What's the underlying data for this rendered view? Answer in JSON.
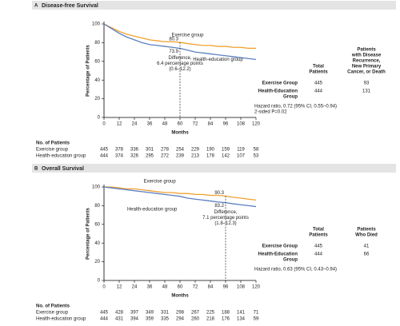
{
  "chart_data": [
    {
      "type": "line",
      "panel": "A",
      "title": "Disease-free Survival",
      "xlabel": "Months",
      "ylabel": "Percentage of Patients",
      "x": [
        0,
        6,
        12,
        18,
        24,
        30,
        36,
        42,
        48,
        54,
        60,
        66,
        72,
        78,
        84,
        90,
        96,
        102,
        108,
        114,
        120
      ],
      "xlim": [
        0,
        120
      ],
      "xticks": [
        0,
        12,
        24,
        36,
        48,
        60,
        72,
        84,
        96,
        108,
        120
      ],
      "ylim": [
        0,
        100
      ],
      "yticks": [
        0,
        20,
        40,
        60,
        80,
        100
      ],
      "grid": false,
      "series": [
        {
          "name": "Exercise group",
          "color": "#f0a030",
          "values": [
            100,
            96,
            92,
            89,
            87,
            85,
            83,
            82,
            81,
            81,
            80.3,
            79,
            78,
            77,
            77,
            76,
            76,
            75,
            75,
            74,
            74
          ]
        },
        {
          "name": "Health-education group",
          "color": "#5b7fc0",
          "values": [
            100,
            95,
            90,
            86,
            83,
            80,
            78,
            77,
            76,
            75,
            73.9,
            72,
            70,
            69,
            68,
            67,
            66,
            65,
            64,
            63,
            62
          ]
        }
      ],
      "marked_x": 60,
      "marked_values": [
        80.3,
        73.9
      ],
      "difference": [
        "Difference,",
        "6.4 percentage points",
        "(0.6–12.2)"
      ],
      "table": {
        "columns": [
          [
            "Total",
            "Patients"
          ],
          [
            "Patients",
            "with Disease",
            "Recurrence,",
            "New Primary",
            "Cancer, or Death"
          ]
        ],
        "rows": [
          {
            "label": [
              "Exercise Group"
            ],
            "values": [
              445,
              93
            ]
          },
          {
            "label": [
              "Health-Education",
              "Group"
            ],
            "values": [
              444,
              131
            ]
          }
        ],
        "footnotes": [
          "Hazard ratio, 0.72 (95% CI, 0.55–0.94)",
          "2-sided P=0.02"
        ]
      },
      "at_risk": {
        "title": "No. of Patients",
        "rows": [
          {
            "name": "Exercise group",
            "values": [
              445,
              378,
              336,
              301,
              278,
              254,
              229,
              190,
              159,
              119,
              58
            ]
          },
          {
            "name": "Health-education group",
            "values": [
              444,
              374,
              326,
              295,
              272,
              239,
              213,
              178,
              142,
              107,
              53
            ]
          }
        ]
      }
    },
    {
      "type": "line",
      "panel": "B",
      "title": "Overall Survival",
      "xlabel": "Months",
      "ylabel": "Percentage of Patients",
      "x": [
        0,
        6,
        12,
        18,
        24,
        30,
        36,
        42,
        48,
        54,
        60,
        66,
        72,
        78,
        84,
        90,
        96,
        102,
        108,
        114,
        120
      ],
      "xlim": [
        0,
        120
      ],
      "xticks": [
        0,
        12,
        24,
        36,
        48,
        60,
        72,
        84,
        96,
        108,
        120
      ],
      "ylim": [
        0,
        100
      ],
      "yticks": [
        0,
        20,
        40,
        60,
        80,
        100
      ],
      "grid": false,
      "series": [
        {
          "name": "Exercise group",
          "color": "#f0a030",
          "values": [
            100,
            100,
            99,
            98,
            98,
            97,
            96,
            95,
            94,
            94,
            93,
            93,
            92,
            92,
            91,
            91,
            90.3,
            89,
            88,
            87,
            86
          ]
        },
        {
          "name": "Health-education group",
          "color": "#5b7fc0",
          "values": [
            100,
            99,
            98,
            97,
            96,
            95,
            94,
            93,
            92,
            91,
            90,
            88,
            87,
            86,
            85,
            84,
            83.2,
            82,
            81,
            80,
            79
          ]
        }
      ],
      "marked_x": 96,
      "marked_values": [
        90.3,
        83.2
      ],
      "difference": [
        "Difference,",
        "7.1 percentage points",
        "(1.8–12.3)"
      ],
      "table": {
        "columns": [
          [
            "Total",
            "Patients"
          ],
          [
            "Patients",
            "Who Died"
          ]
        ],
        "rows": [
          {
            "label": [
              "Exercise Group"
            ],
            "values": [
              445,
              41
            ]
          },
          {
            "label": [
              "Health-Education",
              "Group"
            ],
            "values": [
              444,
              66
            ]
          }
        ],
        "footnotes": [
          "Hazard ratio, 0.63 (95% CI, 0.43–0.94)"
        ]
      },
      "at_risk": {
        "title": "No. of Patients",
        "rows": [
          {
            "name": "Exercise group",
            "values": [
              445,
              428,
              397,
              349,
              331,
              298,
              267,
              225,
              188,
              141,
              71
            ]
          },
          {
            "name": "Health-education group",
            "values": [
              444,
              431,
              394,
              359,
              335,
              294,
              260,
              218,
              176,
              134,
              59
            ]
          }
        ]
      }
    }
  ]
}
